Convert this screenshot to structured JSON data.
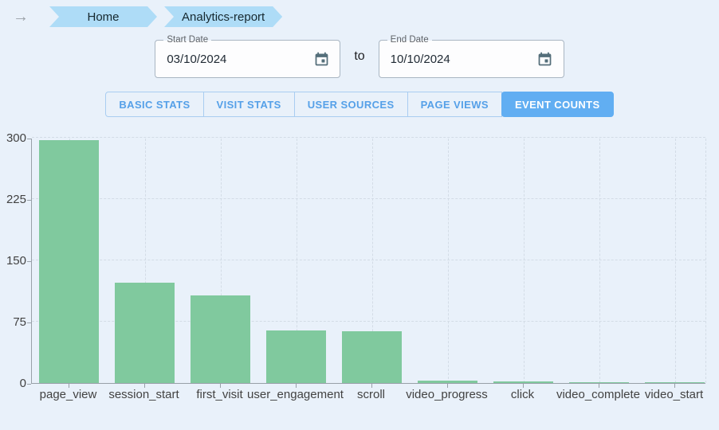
{
  "header": {
    "nav_arrow": "→",
    "breadcrumbs": [
      {
        "label": "Home"
      },
      {
        "label": "Analytics-report"
      }
    ]
  },
  "date_range": {
    "start": {
      "label": "Start Date",
      "value": "03/10/2024"
    },
    "separator": "to",
    "end": {
      "label": "End Date",
      "value": "10/10/2024"
    }
  },
  "tabs": [
    {
      "label": "BASIC STATS",
      "active": false
    },
    {
      "label": "VISIT STATS",
      "active": false
    },
    {
      "label": "USER SOURCES",
      "active": false
    },
    {
      "label": "PAGE VIEWS",
      "active": false
    },
    {
      "label": "EVENT COUNTS",
      "active": true
    }
  ],
  "chart_data": {
    "type": "bar",
    "categories": [
      "page_view",
      "session_start",
      "first_visit",
      "user_engagement",
      "scroll",
      "video_progress",
      "click",
      "video_complete",
      "video_start"
    ],
    "values": [
      297,
      123,
      107,
      64,
      63,
      3,
      2,
      1,
      1
    ],
    "title": "",
    "xlabel": "",
    "ylabel": "",
    "ylim": [
      0,
      300
    ],
    "yticks": [
      0,
      75,
      150,
      225,
      300
    ],
    "grid": true,
    "legend": false,
    "bar_color": "#80c99e"
  },
  "colors": {
    "page_bg": "#e9f1fa",
    "breadcrumb_bg": "#aedcf7",
    "tab_active_bg": "#61aef2",
    "tab_text": "#55a0e8",
    "bar": "#80c99e",
    "gridline": "#d3dce6",
    "axis": "#98a0a8",
    "calendar_icon": "#546e7a"
  }
}
